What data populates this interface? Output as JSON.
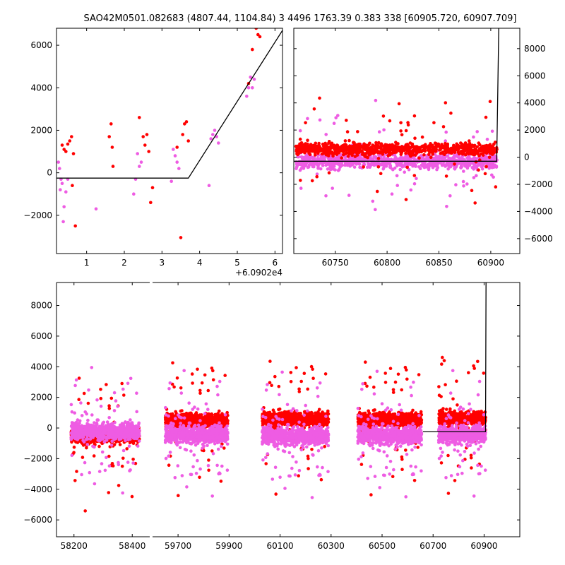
{
  "figure": {
    "title": "SAO42M0501.082683 (4807.44, 1104.84)    3 4496 1763.39 0.383 338 [60905.720, 60907.709]"
  },
  "colors": {
    "red": "#ff0000",
    "magenta": "#ee5ce3",
    "model": "#000000",
    "axes": "#000000"
  },
  "chart_data": [
    {
      "type": "scatter",
      "panel": "top-left zoom",
      "title": "",
      "xlabel": "",
      "ylabel": "",
      "x_offset_label": "+6.0902e4",
      "xlim": [
        0.2,
        6.2
      ],
      "ylim": [
        -3800,
        6800
      ],
      "x_ticks": [
        1,
        2,
        3,
        4,
        5,
        6
      ],
      "x_tick_labels": [
        "1",
        "2",
        "3",
        "4",
        "5",
        "6"
      ],
      "y_ticks": [
        -2000,
        0,
        2000,
        4000,
        6000
      ],
      "y_tick_labels": [
        "−2000",
        "0",
        "2000",
        "4000",
        "6000"
      ],
      "y_axis_side": "left",
      "grid": false,
      "series": [
        {
          "color": "red",
          "points": [
            [
              0.35,
              1300
            ],
            [
              0.4,
              1100
            ],
            [
              0.45,
              1000
            ],
            [
              0.5,
              1350
            ],
            [
              0.55,
              1500
            ],
            [
              0.6,
              1700
            ],
            [
              0.62,
              -600
            ],
            [
              0.65,
              900
            ],
            [
              0.7,
              -2500
            ],
            [
              1.6,
              1700
            ],
            [
              1.65,
              2300
            ],
            [
              1.68,
              1200
            ],
            [
              1.7,
              300
            ],
            [
              2.4,
              2600
            ],
            [
              2.5,
              1700
            ],
            [
              2.55,
              1300
            ],
            [
              2.6,
              1800
            ],
            [
              2.65,
              1000
            ],
            [
              2.7,
              -1400
            ],
            [
              2.75,
              -700
            ],
            [
              3.4,
              1200
            ],
            [
              3.5,
              -3050
            ],
            [
              3.55,
              1800
            ],
            [
              3.6,
              2300
            ],
            [
              3.65,
              2400
            ],
            [
              3.7,
              1500
            ],
            [
              5.3,
              4200
            ],
            [
              5.4,
              5800
            ],
            [
              5.5,
              6800
            ],
            [
              5.55,
              6500
            ],
            [
              5.6,
              6400
            ]
          ]
        },
        {
          "color": "magenta",
          "points": [
            [
              0.25,
              500
            ],
            [
              0.28,
              200
            ],
            [
              0.3,
              -800
            ],
            [
              0.32,
              -300
            ],
            [
              0.35,
              -500
            ],
            [
              0.38,
              -2300
            ],
            [
              0.4,
              -1600
            ],
            [
              0.45,
              -900
            ],
            [
              0.5,
              -300
            ],
            [
              1.25,
              -1700
            ],
            [
              2.25,
              -1000
            ],
            [
              2.3,
              -300
            ],
            [
              2.35,
              900
            ],
            [
              2.4,
              300
            ],
            [
              2.45,
              500
            ],
            [
              3.25,
              -400
            ],
            [
              3.3,
              1100
            ],
            [
              3.35,
              800
            ],
            [
              3.4,
              500
            ],
            [
              3.45,
              200
            ],
            [
              4.25,
              -600
            ],
            [
              4.3,
              1600
            ],
            [
              4.35,
              1800
            ],
            [
              4.4,
              2000
            ],
            [
              4.45,
              1700
            ],
            [
              4.5,
              1400
            ],
            [
              5.25,
              3600
            ],
            [
              5.3,
              4000
            ],
            [
              5.35,
              4500
            ],
            [
              5.4,
              4000
            ],
            [
              5.45,
              4400
            ]
          ]
        }
      ],
      "model_line": [
        [
          0.2,
          -250
        ],
        [
          3.7,
          -250
        ],
        [
          6.2,
          6700
        ]
      ]
    },
    {
      "type": "scatter",
      "panel": "top-right",
      "title": "",
      "xlabel": "",
      "ylabel": "",
      "xlim": [
        60710,
        60928
      ],
      "ylim": [
        -7100,
        9500
      ],
      "x_ticks": [
        60750,
        60800,
        60850,
        60900
      ],
      "x_tick_labels": [
        "60750",
        "60800",
        "60850",
        "60900"
      ],
      "y_ticks": [
        -6000,
        -4000,
        -2000,
        0,
        2000,
        4000,
        6000,
        8000
      ],
      "y_tick_labels": [
        "−6000",
        "−4000",
        "−2000",
        "0",
        "2000",
        "4000",
        "6000",
        "8000"
      ],
      "y_axis_side": "right",
      "grid": false,
      "band": {
        "x_start": 60712,
        "x_end": 60906,
        "red_center": 600,
        "red_spread": 700,
        "magenta_center": -300,
        "magenta_spread": 650
      },
      "model_line": [
        [
          60710,
          -300
        ],
        [
          60905.72,
          -300
        ],
        [
          60907.709,
          9500
        ]
      ]
    },
    {
      "type": "scatter",
      "panel": "bottom",
      "title": "",
      "xlabel": "",
      "ylabel": "",
      "ylim": [
        -7100,
        9500
      ],
      "x_ticks": [
        58200,
        58400,
        59700,
        59900,
        60100,
        60300,
        60500,
        60700,
        60900
      ],
      "x_tick_labels": [
        "58200",
        "58400",
        "59700",
        "59900",
        "60100",
        "60300",
        "60500",
        "60700",
        "60900"
      ],
      "y_ticks": [
        -6000,
        -4000,
        -2000,
        0,
        2000,
        4000,
        6000,
        8000
      ],
      "y_tick_labels": [
        "−6000",
        "−4000",
        "−2000",
        "0",
        "2000",
        "4000",
        "6000",
        "8000"
      ],
      "y_axis_side": "left",
      "grid": false,
      "x_segments": [
        {
          "xmin": 58140,
          "xmax": 58460
        },
        {
          "xmin": 59600,
          "xmax": 61040
        }
      ],
      "seasons": [
        {
          "start": 58190,
          "end": 58425,
          "red_center": -500,
          "magenta_center": -200
        },
        {
          "start": 59650,
          "end": 59895,
          "red_center": 500,
          "magenta_center": -400
        },
        {
          "start": 60030,
          "end": 60290,
          "red_center": 600,
          "magenta_center": -500
        },
        {
          "start": 60405,
          "end": 60655,
          "red_center": 550,
          "magenta_center": -450
        },
        {
          "start": 60722,
          "end": 60906,
          "red_center": 650,
          "magenta_center": -400
        }
      ],
      "model_line": [
        [
          60660,
          -250
        ],
        [
          60905.72,
          -250
        ],
        [
          60907.709,
          9500
        ]
      ]
    }
  ]
}
